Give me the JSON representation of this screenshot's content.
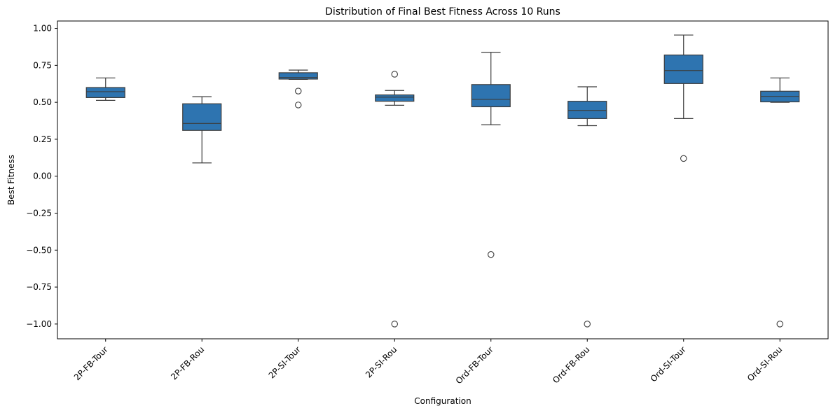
{
  "chart_data": {
    "type": "box",
    "title": "Distribution of Final Best Fitness Across 10 Runs",
    "xlabel": "Configuration",
    "ylabel": "Best Fitness",
    "ylim": [
      -1.1,
      1.05
    ],
    "yticks": [
      {
        "value": 1.0,
        "label": "1.00"
      },
      {
        "value": 0.75,
        "label": "0.75"
      },
      {
        "value": 0.5,
        "label": "0.50"
      },
      {
        "value": 0.25,
        "label": "0.25"
      },
      {
        "value": 0.0,
        "label": "0.00"
      },
      {
        "value": -0.25,
        "label": "−0.25"
      },
      {
        "value": -0.5,
        "label": "−0.50"
      },
      {
        "value": -0.75,
        "label": "−0.75"
      },
      {
        "value": -1.0,
        "label": "−1.00"
      }
    ],
    "categories": [
      "2P-FB-Tour",
      "2P-FB-Rou",
      "2P-SI-Tour",
      "2P-SI-Rou",
      "Ord-FB-Tour",
      "Ord-FB-Rou",
      "Ord-SI-Tour",
      "Ord-SI-Rou"
    ],
    "box_color": "#2e74b0",
    "edge_color": "#3d3d3d",
    "boxes": [
      {
        "whisker_low": 0.513,
        "q1": 0.532,
        "median": 0.572,
        "q3": 0.6,
        "whisker_high": 0.665,
        "outliers": []
      },
      {
        "whisker_low": 0.09,
        "q1": 0.31,
        "median": 0.357,
        "q3": 0.49,
        "whisker_high": 0.538,
        "outliers": []
      },
      {
        "whisker_low": 0.655,
        "q1": 0.657,
        "median": 0.668,
        "q3": 0.7,
        "whisker_high": 0.718,
        "outliers": [
          0.576,
          0.482
        ]
      },
      {
        "whisker_low": 0.48,
        "q1": 0.507,
        "median": 0.535,
        "q3": 0.55,
        "whisker_high": 0.58,
        "outliers": [
          0.69,
          -1.0
        ]
      },
      {
        "whisker_low": 0.348,
        "q1": 0.47,
        "median": 0.52,
        "q3": 0.62,
        "whisker_high": 0.838,
        "outliers": [
          -0.53
        ]
      },
      {
        "whisker_low": 0.342,
        "q1": 0.39,
        "median": 0.445,
        "q3": 0.507,
        "whisker_high": 0.605,
        "outliers": [
          -1.0
        ]
      },
      {
        "whisker_low": 0.39,
        "q1": 0.627,
        "median": 0.715,
        "q3": 0.82,
        "whisker_high": 0.955,
        "outliers": [
          0.12
        ]
      },
      {
        "whisker_low": 0.5,
        "q1": 0.503,
        "median": 0.54,
        "q3": 0.575,
        "whisker_high": 0.665,
        "outliers": [
          -1.0
        ]
      }
    ]
  }
}
